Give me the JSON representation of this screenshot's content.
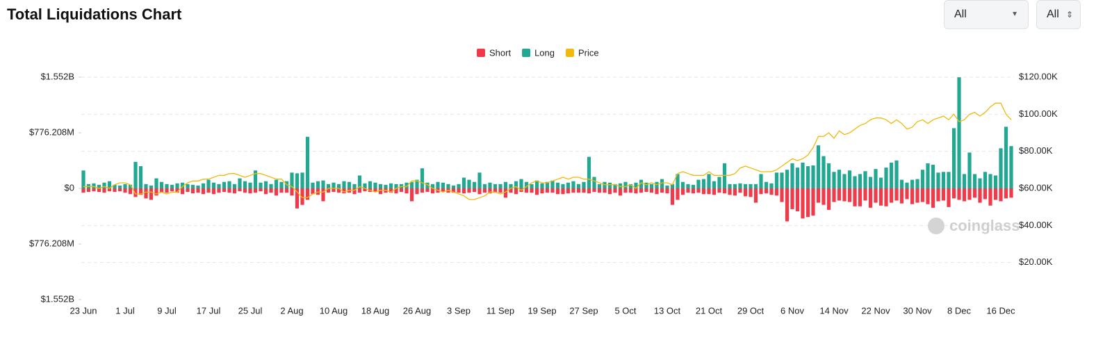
{
  "header": {
    "title": "Total Liquidations Chart",
    "controls": [
      "All",
      "All"
    ]
  },
  "chart_data": {
    "type": "bar",
    "watermark": "coinglass",
    "categories": [
      "23 Jun",
      null,
      null,
      null,
      null,
      null,
      null,
      null,
      "1 Jul",
      null,
      null,
      null,
      null,
      null,
      null,
      null,
      "9 Jul",
      null,
      null,
      null,
      null,
      null,
      null,
      null,
      "17 Jul",
      null,
      null,
      null,
      null,
      null,
      null,
      null,
      "25 Jul",
      null,
      null,
      null,
      null,
      null,
      null,
      null,
      "2 Aug",
      null,
      null,
      null,
      null,
      null,
      null,
      null,
      "10 Aug",
      null,
      null,
      null,
      null,
      null,
      null,
      null,
      "18 Aug",
      null,
      null,
      null,
      null,
      null,
      null,
      null,
      "26 Aug",
      null,
      null,
      null,
      null,
      null,
      null,
      null,
      "3 Sep",
      null,
      null,
      null,
      null,
      null,
      null,
      null,
      "11 Sep",
      null,
      null,
      null,
      null,
      null,
      null,
      null,
      "19 Sep",
      null,
      null,
      null,
      null,
      null,
      null,
      null,
      "27 Sep",
      null,
      null,
      null,
      null,
      null,
      null,
      null,
      "5 Oct",
      null,
      null,
      null,
      null,
      null,
      null,
      null,
      "13 Oct",
      null,
      null,
      null,
      null,
      null,
      null,
      null,
      "21 Oct",
      null,
      null,
      null,
      null,
      null,
      null,
      null,
      "29 Oct",
      null,
      null,
      null,
      null,
      null,
      null,
      null,
      "6 Nov",
      null,
      null,
      null,
      null,
      null,
      null,
      null,
      "14 Nov",
      null,
      null,
      null,
      null,
      null,
      null,
      null,
      "22 Nov",
      null,
      null,
      null,
      null,
      null,
      null,
      null,
      "30 Nov",
      null,
      null,
      null,
      null,
      null,
      null,
      null,
      "8 Dec",
      null,
      null,
      null,
      null,
      null,
      null,
      null,
      "16 Dec",
      null,
      null
    ],
    "series": [
      {
        "name": "Short",
        "color": "#f03a4a",
        "values": [
          -60000000,
          -50000000,
          -40000000,
          -50000000,
          -60000000,
          -40000000,
          -50000000,
          -40000000,
          -60000000,
          -80000000,
          -120000000,
          -90000000,
          -140000000,
          -160000000,
          -100000000,
          -60000000,
          -60000000,
          -40000000,
          -60000000,
          -80000000,
          -50000000,
          -70000000,
          -60000000,
          -80000000,
          -60000000,
          -80000000,
          -60000000,
          -50000000,
          -60000000,
          -70000000,
          -40000000,
          -60000000,
          -70000000,
          -60000000,
          -40000000,
          -80000000,
          -60000000,
          -100000000,
          -60000000,
          -60000000,
          -100000000,
          -280000000,
          -230000000,
          -160000000,
          -80000000,
          -90000000,
          -180000000,
          -60000000,
          -50000000,
          -60000000,
          -70000000,
          -60000000,
          -80000000,
          -60000000,
          -40000000,
          -50000000,
          -50000000,
          -80000000,
          -60000000,
          -60000000,
          -70000000,
          -50000000,
          -70000000,
          -180000000,
          -80000000,
          -60000000,
          -50000000,
          -70000000,
          -60000000,
          -50000000,
          -60000000,
          -60000000,
          -60000000,
          -70000000,
          -60000000,
          -50000000,
          -80000000,
          -60000000,
          -70000000,
          -60000000,
          -60000000,
          -130000000,
          -60000000,
          -80000000,
          -50000000,
          -60000000,
          -60000000,
          -90000000,
          -70000000,
          -60000000,
          -60000000,
          -80000000,
          -80000000,
          -70000000,
          -60000000,
          -60000000,
          -60000000,
          -70000000,
          -50000000,
          -60000000,
          -60000000,
          -80000000,
          -60000000,
          -100000000,
          -60000000,
          -60000000,
          -70000000,
          -60000000,
          -50000000,
          -60000000,
          -80000000,
          -60000000,
          -70000000,
          -230000000,
          -160000000,
          -90000000,
          -60000000,
          -70000000,
          -60000000,
          -80000000,
          -80000000,
          -90000000,
          -60000000,
          -70000000,
          -90000000,
          -100000000,
          -60000000,
          -110000000,
          -120000000,
          -200000000,
          -80000000,
          -70000000,
          -90000000,
          -100000000,
          -190000000,
          -460000000,
          -290000000,
          -320000000,
          -420000000,
          -400000000,
          -380000000,
          -200000000,
          -230000000,
          -300000000,
          -190000000,
          -170000000,
          -180000000,
          -190000000,
          -250000000,
          -250000000,
          -170000000,
          -270000000,
          -200000000,
          -240000000,
          -250000000,
          -200000000,
          -170000000,
          -210000000,
          -150000000,
          -220000000,
          -200000000,
          -190000000,
          -220000000,
          -270000000,
          -180000000,
          -170000000,
          -260000000,
          -140000000,
          -160000000,
          -180000000,
          -160000000,
          -130000000,
          -200000000,
          -150000000,
          -240000000,
          -160000000,
          -180000000,
          -140000000,
          -130000000
        ]
      },
      {
        "name": "Long",
        "color": "#22a892",
        "values": [
          250000000,
          60000000,
          70000000,
          50000000,
          80000000,
          100000000,
          50000000,
          40000000,
          60000000,
          50000000,
          370000000,
          310000000,
          60000000,
          40000000,
          140000000,
          90000000,
          60000000,
          50000000,
          70000000,
          80000000,
          60000000,
          50000000,
          40000000,
          70000000,
          120000000,
          80000000,
          60000000,
          90000000,
          100000000,
          60000000,
          140000000,
          100000000,
          80000000,
          250000000,
          80000000,
          100000000,
          60000000,
          120000000,
          90000000,
          100000000,
          220000000,
          210000000,
          220000000,
          720000000,
          80000000,
          100000000,
          110000000,
          60000000,
          80000000,
          60000000,
          100000000,
          90000000,
          60000000,
          180000000,
          70000000,
          100000000,
          80000000,
          60000000,
          50000000,
          70000000,
          60000000,
          60000000,
          80000000,
          90000000,
          120000000,
          280000000,
          80000000,
          60000000,
          90000000,
          80000000,
          60000000,
          40000000,
          60000000,
          150000000,
          120000000,
          90000000,
          220000000,
          60000000,
          80000000,
          60000000,
          60000000,
          90000000,
          60000000,
          100000000,
          130000000,
          90000000,
          60000000,
          110000000,
          70000000,
          90000000,
          110000000,
          80000000,
          60000000,
          80000000,
          100000000,
          60000000,
          90000000,
          440000000,
          160000000,
          60000000,
          90000000,
          80000000,
          60000000,
          70000000,
          90000000,
          60000000,
          80000000,
          120000000,
          80000000,
          60000000,
          90000000,
          130000000,
          40000000,
          60000000,
          200000000,
          90000000,
          60000000,
          50000000,
          120000000,
          130000000,
          200000000,
          100000000,
          160000000,
          350000000,
          60000000,
          60000000,
          70000000,
          60000000,
          60000000,
          60000000,
          200000000,
          90000000,
          70000000,
          220000000,
          220000000,
          260000000,
          350000000,
          290000000,
          360000000,
          310000000,
          320000000,
          600000000,
          450000000,
          350000000,
          230000000,
          260000000,
          200000000,
          250000000,
          170000000,
          200000000,
          240000000,
          160000000,
          270000000,
          150000000,
          290000000,
          360000000,
          390000000,
          120000000,
          80000000,
          120000000,
          130000000,
          260000000,
          350000000,
          330000000,
          220000000,
          230000000,
          230000000,
          840000000,
          1550000000,
          200000000,
          500000000,
          200000000,
          140000000,
          230000000,
          200000000,
          180000000,
          560000000,
          860000000,
          590000000
        ]
      },
      {
        "name": "Price",
        "color": "#f0b90b",
        "type": "line",
        "axis": "y2",
        "values": [
          61000,
          61000,
          61000,
          60000,
          61000,
          60000,
          62000,
          63000,
          63000,
          62000,
          57000,
          57000,
          58000,
          58000,
          57000,
          58000,
          57000,
          58000,
          58000,
          61000,
          63000,
          64000,
          64000,
          65000,
          65000,
          66000,
          67000,
          67000,
          68000,
          68000,
          67000,
          66000,
          67000,
          68000,
          68000,
          67000,
          66000,
          65000,
          65000,
          62000,
          61000,
          58000,
          55000,
          55000,
          57000,
          58000,
          58000,
          60000,
          60000,
          60000,
          58000,
          59000,
          59000,
          61000,
          60000,
          59000,
          58000,
          59000,
          59000,
          58000,
          60000,
          61000,
          61000,
          64000,
          64000,
          63000,
          62000,
          60000,
          59000,
          58000,
          59000,
          58000,
          57000,
          56000,
          54000,
          54000,
          55000,
          56000,
          58000,
          58000,
          57000,
          58000,
          60000,
          61000,
          59000,
          61000,
          63000,
          64000,
          63000,
          63000,
          64000,
          65000,
          66000,
          65000,
          66000,
          66000,
          65000,
          65000,
          64000,
          63000,
          62000,
          62000,
          62000,
          61000,
          61000,
          62000,
          60000,
          63000,
          62000,
          63000,
          62000,
          63000,
          63000,
          62000,
          68000,
          69000,
          68000,
          67000,
          67000,
          67000,
          69000,
          67000,
          67000,
          67000,
          67000,
          68000,
          71000,
          72000,
          71000,
          70000,
          69000,
          69000,
          69000,
          70000,
          72000,
          74000,
          76000,
          75000,
          76000,
          78000,
          82000,
          88000,
          88000,
          90000,
          87000,
          91000,
          89000,
          90000,
          92000,
          94000,
          95000,
          97000,
          98000,
          98000,
          97000,
          95000,
          97000,
          95000,
          92000,
          93000,
          96000,
          97000,
          95000,
          97000,
          98000,
          99000,
          97000,
          100000,
          96000,
          97000,
          100000,
          101000,
          99000,
          101000,
          104000,
          106000,
          106000,
          100000,
          97000
        ]
      }
    ],
    "ylim": [
      -1552000000,
      1552000000
    ],
    "yticks": [
      {
        "value": -1552000000,
        "label": "$1.552B"
      },
      {
        "value": -776208000,
        "label": "$776.208M"
      },
      {
        "value": 0,
        "label": "$0"
      },
      {
        "value": 776208000,
        "label": "$776.208M"
      },
      {
        "value": 1552000000,
        "label": "$1.552B"
      }
    ],
    "y2lim": [
      0,
      120000
    ],
    "y2ticks": [
      {
        "value": 20000,
        "label": "$20.00K"
      },
      {
        "value": 40000,
        "label": "$40.00K"
      },
      {
        "value": 60000,
        "label": "$60.00K"
      },
      {
        "value": 80000,
        "label": "$80.00K"
      },
      {
        "value": 100000,
        "label": "$100.00K"
      },
      {
        "value": 120000,
        "label": "$120.00K"
      }
    ],
    "grid": true,
    "legend": "top"
  }
}
